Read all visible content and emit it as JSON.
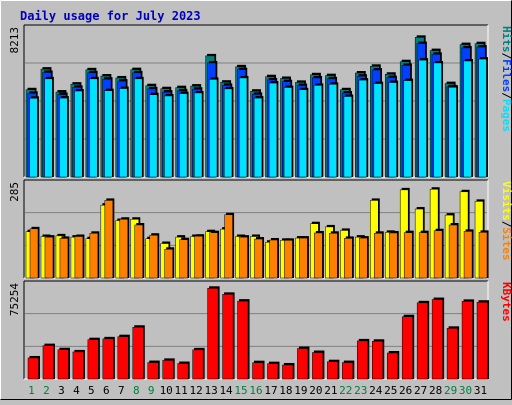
{
  "chart_data": {
    "type": "bar",
    "title": "Daily usage for July 2023",
    "colors": {
      "background": "#c0c0c0",
      "panel": "#c0c0c0",
      "grid": "#808080",
      "title": "#0000c0",
      "hits": "#008080",
      "files": "#0040ff",
      "pages": "#00e0ff",
      "visits": "#ffff00",
      "sites": "#ff8000",
      "kbytes": "#ff0000",
      "weekday_label": "#000000",
      "weekend_label": "#008040"
    },
    "x": {
      "labels": [
        "1",
        "2",
        "3",
        "4",
        "5",
        "6",
        "7",
        "8",
        "9",
        "10",
        "11",
        "12",
        "13",
        "14",
        "15",
        "16",
        "17",
        "18",
        "19",
        "20",
        "21",
        "22",
        "23",
        "24",
        "25",
        "26",
        "27",
        "28",
        "29",
        "30",
        "31"
      ],
      "weekend_days": [
        "1",
        "2",
        "8",
        "9",
        "15",
        "16",
        "22",
        "23",
        "29",
        "30"
      ]
    },
    "panels": [
      {
        "id": "hits",
        "max_label": "8213",
        "ymax": 8213,
        "legend": [
          "Hits",
          "/",
          "Files",
          "/",
          "Pages"
        ],
        "legend_colors": [
          "#008080",
          "#000000",
          "#0040ff",
          "#000000",
          "#00e0ff"
        ],
        "series": [
          {
            "name": "Hits",
            "values": [
              4940,
              6110,
              4810,
              5260,
              6070,
              5720,
              5610,
              6080,
              5170,
              5000,
              5060,
              5150,
              6860,
              5370,
              6240,
              4860,
              5680,
              5580,
              5360,
              5790,
              5740,
              4940,
              5890,
              6270,
              5820,
              6530,
              7910,
              7160,
              5290,
              7500,
              7550
            ]
          },
          {
            "name": "Files",
            "values": [
              4740,
              5920,
              4670,
              5080,
              5900,
              5540,
              5430,
              5900,
              4990,
              4810,
              4880,
              4970,
              6460,
              5190,
              6080,
              4680,
              5500,
              5400,
              5180,
              5610,
              5560,
              4760,
              5710,
              6060,
              5630,
              6320,
              7560,
              6950,
              5110,
              7310,
              7360
            ]
          },
          {
            "name": "Pages",
            "values": [
              4460,
              5560,
              4470,
              4870,
              5560,
              4890,
              5010,
              5560,
              4660,
              4590,
              4720,
              4760,
              5530,
              4990,
              5610,
              4470,
              5320,
              5070,
              4940,
              5190,
              5250,
              4560,
              5490,
              5290,
              5350,
              5460,
              6620,
              6460,
              5080,
              6570,
              6680
            ]
          }
        ]
      },
      {
        "id": "visits",
        "max_label": "285",
        "ymax": 285,
        "legend": [
          "Visits",
          "/",
          "Sites"
        ],
        "legend_colors": [
          "#ffff00",
          "#000000",
          "#ff8000"
        ],
        "series": [
          {
            "name": "Visits",
            "values": [
              145,
              130,
              132,
              128,
              123,
              228,
              180,
              184,
              123,
              108,
              128,
              130,
              145,
              153,
              130,
              130,
              112,
              118,
              125,
              170,
              160,
              149,
              128,
              243,
              143,
              276,
              216,
              278,
              197,
              270,
              240
            ]
          },
          {
            "name": "Sites",
            "values": [
              154,
              128,
              124,
              130,
              140,
              243,
              184,
              166,
              134,
              90,
              120,
              131,
              142,
              198,
              128,
              122,
              119,
              118,
              125,
              141,
              140,
              124,
              125,
              140,
              141,
              142,
              142,
              148,
              166,
              146,
              143
            ]
          }
        ]
      },
      {
        "id": "kbytes",
        "max_label": "75254",
        "ymax": 75254,
        "legend": [
          "KBytes"
        ],
        "legend_colors": [
          "#ff0000"
        ],
        "series": [
          {
            "name": "KBytes",
            "values": [
              17400,
              27600,
              24200,
              22400,
              32500,
              33200,
              35000,
              42800,
              13600,
              15400,
              12800,
              24100,
              75000,
              70000,
              64400,
              13500,
              12700,
              11600,
              25200,
              21900,
              14300,
              13600,
              31500,
              31200,
              21500,
              51500,
              63000,
              65700,
              41900,
              64200,
              63500
            ]
          }
        ]
      }
    ]
  }
}
